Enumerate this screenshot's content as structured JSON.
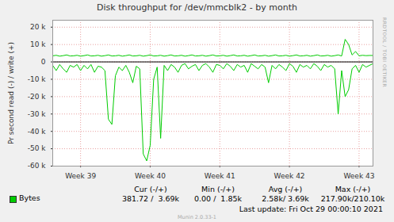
{
  "chart_data": {
    "type": "line",
    "title": "Disk throughput for /dev/mmcblk2 - by month",
    "y_label": "Pr second read (-) / write (+)",
    "watermark": "RRDTOOL / TOBI OETIKER",
    "x": [
      38.6,
      38.65,
      38.7,
      38.75,
      38.8,
      38.85,
      38.9,
      38.95,
      39.0,
      39.05,
      39.1,
      39.15,
      39.2,
      39.25,
      39.3,
      39.35,
      39.4,
      39.45,
      39.5,
      39.55,
      39.6,
      39.65,
      39.7,
      39.75,
      39.8,
      39.85,
      39.9,
      39.95,
      40.0,
      40.05,
      40.1,
      40.15,
      40.2,
      40.25,
      40.3,
      40.35,
      40.4,
      40.45,
      40.5,
      40.55,
      40.6,
      40.65,
      40.7,
      40.75,
      40.8,
      40.85,
      40.9,
      40.95,
      41.0,
      41.05,
      41.1,
      41.15,
      41.2,
      41.25,
      41.3,
      41.35,
      41.4,
      41.45,
      41.5,
      41.55,
      41.6,
      41.65,
      41.7,
      41.75,
      41.8,
      41.85,
      41.9,
      41.95,
      42.0,
      42.05,
      42.1,
      42.15,
      42.2,
      42.25,
      42.3,
      42.35,
      42.4,
      42.45,
      42.5,
      42.55,
      42.6,
      42.65,
      42.7,
      42.75,
      42.8,
      42.85,
      42.9,
      42.95,
      43.0,
      43.05,
      43.1,
      43.15,
      43.2
    ],
    "series": [
      {
        "name": "Bytes",
        "color": "#00cc00",
        "values": [
          3500,
          3800,
          3300,
          3600,
          4000,
          3400,
          3500,
          3800,
          3300,
          3600,
          4000,
          3400,
          3500,
          3800,
          3300,
          3600,
          4000,
          3400,
          3500,
          3800,
          3300,
          3600,
          4000,
          3400,
          3500,
          3800,
          3300,
          3600,
          4000,
          3400,
          3500,
          3800,
          3300,
          3600,
          4000,
          3400,
          3500,
          3800,
          3300,
          3600,
          4000,
          3400,
          3500,
          3800,
          3300,
          3600,
          4000,
          3400,
          3500,
          3800,
          3300,
          3600,
          4000,
          3400,
          3500,
          3800,
          3300,
          3600,
          4000,
          3400,
          3500,
          3800,
          3300,
          3600,
          4000,
          3400,
          3500,
          3800,
          3300,
          3600,
          4000,
          3400,
          3500,
          3800,
          3300,
          3600,
          4000,
          3400,
          3500,
          3800,
          3300,
          3600,
          4000,
          3400,
          13000,
          10000,
          4000,
          6000,
          3500,
          3800,
          3600,
          3700,
          3700
        ],
        "negative_values": [
          -2000,
          -5000,
          -1500,
          -4000,
          -6000,
          -2000,
          -3000,
          -1500,
          -5000,
          -2000,
          -4000,
          -1500,
          -6000,
          -2500,
          -3000,
          -5000,
          -33000,
          -36000,
          -8000,
          -3000,
          -5000,
          -2000,
          -6000,
          -12000,
          -2500,
          -4000,
          -53000,
          -57000,
          -48000,
          -10000,
          -3000,
          -44000,
          -2000,
          -5000,
          -1500,
          -3000,
          -6000,
          -2000,
          -1000,
          -4000,
          -2500,
          -1500,
          -5000,
          -2000,
          -1000,
          -3000,
          -6000,
          -1500,
          -2000,
          -4000,
          -1000,
          -2500,
          -5000,
          -1500,
          -3000,
          -2000,
          -6000,
          -1000,
          -2500,
          -4000,
          -1500,
          -3000,
          -12000,
          -2000,
          -4000,
          -1500,
          -3000,
          -5000,
          -1000,
          -2500,
          -6000,
          -1500,
          -3000,
          -2000,
          -4000,
          -1000,
          -2500,
          -5000,
          -1500,
          -3000,
          -2000,
          -4000,
          -30000,
          -5000,
          -20000,
          -16000,
          -4000,
          -2000,
          -6000,
          -1500,
          -3000,
          -2000,
          -1000
        ]
      }
    ],
    "xlim": [
      38.6,
      43.2
    ],
    "xticks": [
      {
        "value": 39,
        "label": "Week 39"
      },
      {
        "value": 40,
        "label": "Week 40"
      },
      {
        "value": 41,
        "label": "Week 41"
      },
      {
        "value": 42,
        "label": "Week 42"
      },
      {
        "value": 43,
        "label": "Week 43"
      }
    ],
    "ylim": [
      -60000,
      24000
    ],
    "yticks": [
      {
        "value": -60000,
        "label": "-60 k"
      },
      {
        "value": -50000,
        "label": "-50 k"
      },
      {
        "value": -40000,
        "label": "-40 k"
      },
      {
        "value": -30000,
        "label": "-30 k"
      },
      {
        "value": -20000,
        "label": "-20 k"
      },
      {
        "value": -10000,
        "label": "-10 k"
      },
      0,
      {
        "value": 10000,
        "label": "10 k"
      },
      {
        "value": 20000,
        "label": "20 k"
      }
    ],
    "grid": true,
    "stats": {
      "columns": [
        "Cur (-/+)",
        "Min (-/+)",
        "Avg (-/+)",
        "Max (-/+)"
      ],
      "cells": [
        "381.72 /  3.69k",
        "0.00 /  1.85k",
        "2.58k/ 3.69k",
        "217.90k/210.10k"
      ]
    },
    "last_update": "Last update: Fri Oct 29 00:00:10 2021",
    "credit": "Munin 2.0.33-1"
  }
}
